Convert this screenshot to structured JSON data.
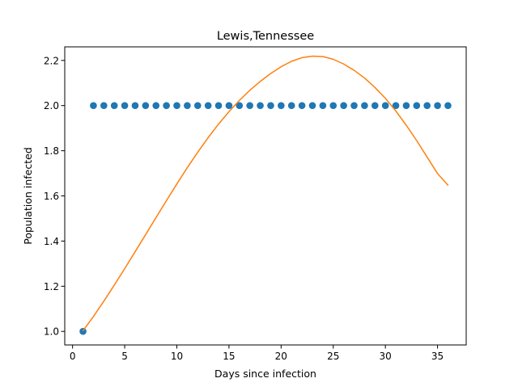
{
  "chart_data": {
    "type": "scatter",
    "title": "Lewis,Tennessee",
    "xlabel": "Days since infection",
    "ylabel": "Population infected",
    "xlim": [
      -0.75,
      37.75
    ],
    "ylim": [
      0.94,
      2.26
    ],
    "xticks": [
      0,
      5,
      10,
      15,
      20,
      25,
      30,
      35
    ],
    "yticks": [
      1.0,
      1.2,
      1.4,
      1.6,
      1.8,
      2.0,
      2.2
    ],
    "grid": false,
    "series": [
      {
        "kind": "scatter",
        "color": "#1f77b4",
        "x": [
          1,
          2,
          3,
          4,
          5,
          6,
          7,
          8,
          9,
          10,
          11,
          12,
          13,
          14,
          15,
          16,
          17,
          18,
          19,
          20,
          21,
          22,
          23,
          24,
          25,
          26,
          27,
          28,
          29,
          30,
          31,
          32,
          33,
          34,
          35,
          36
        ],
        "y": [
          1,
          2,
          2,
          2,
          2,
          2,
          2,
          2,
          2,
          2,
          2,
          2,
          2,
          2,
          2,
          2,
          2,
          2,
          2,
          2,
          2,
          2,
          2,
          2,
          2,
          2,
          2,
          2,
          2,
          2,
          2,
          2,
          2,
          2,
          2,
          2
        ]
      },
      {
        "kind": "line",
        "color": "#ff7f0e",
        "x": [
          1,
          2,
          3,
          4,
          5,
          6,
          7,
          8,
          9,
          10,
          11,
          12,
          13,
          14,
          15,
          16,
          17,
          18,
          19,
          20,
          21,
          22,
          23,
          24,
          25,
          26,
          27,
          28,
          29,
          30,
          31,
          32,
          33,
          34,
          35,
          36
        ],
        "y": [
          1.003,
          1.066,
          1.134,
          1.205,
          1.278,
          1.353,
          1.428,
          1.504,
          1.579,
          1.653,
          1.725,
          1.793,
          1.858,
          1.918,
          1.973,
          2.023,
          2.068,
          2.107,
          2.142,
          2.172,
          2.196,
          2.212,
          2.219,
          2.217,
          2.205,
          2.184,
          2.156,
          2.122,
          2.08,
          2.032,
          1.976,
          1.913,
          1.845,
          1.772,
          1.699,
          1.648
        ]
      }
    ]
  }
}
